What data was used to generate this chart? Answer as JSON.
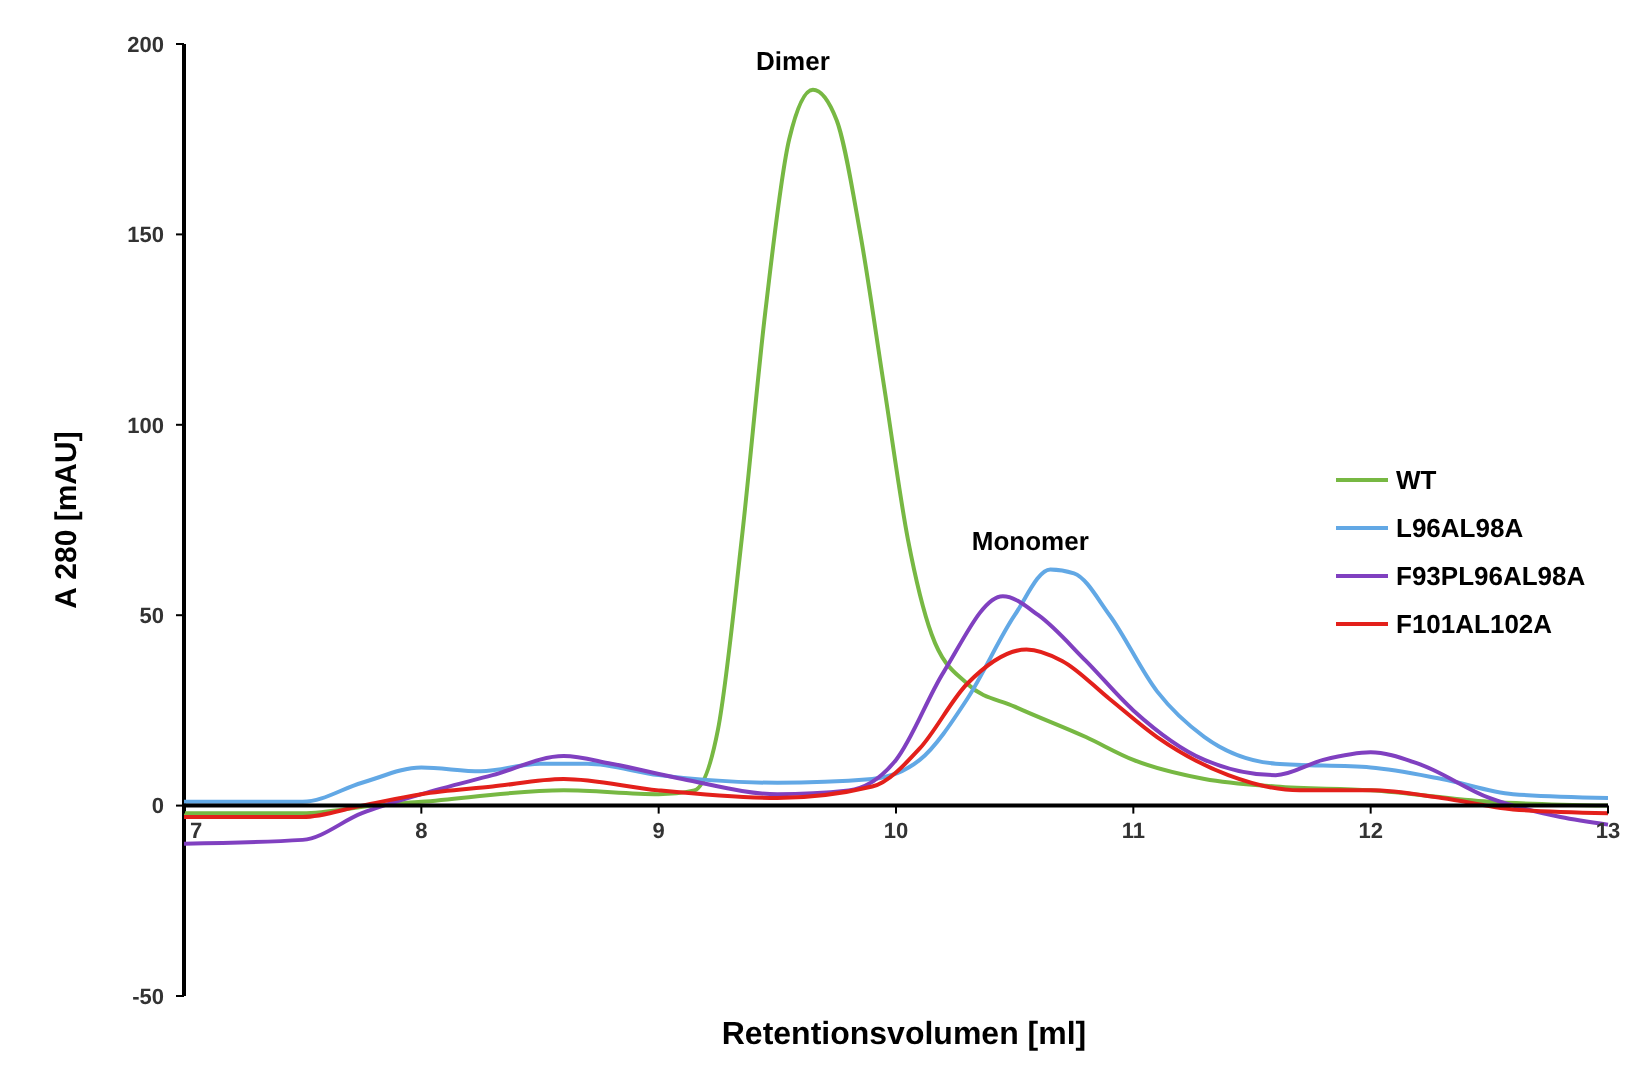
{
  "chart_data": {
    "type": "line",
    "xlabel": "Retentionsvolumen [ml]",
    "ylabel": "A 280 [mAU]",
    "xlim": [
      7,
      13
    ],
    "xticks": [
      7,
      8,
      9,
      10,
      11,
      12,
      13
    ],
    "ylim": [
      -50,
      200
    ],
    "yticks": [
      -50,
      0,
      50,
      100,
      150,
      200
    ],
    "grid": false,
    "legend": "right",
    "line_style": "solid",
    "annotations": [
      {
        "text": "Dimer",
        "x": 9.65,
        "y": 188
      },
      {
        "text": "Monomer",
        "x": 10.65,
        "y": 62
      }
    ],
    "series": [
      {
        "name": "WT",
        "color": "#77b843",
        "x": [
          7,
          7.5,
          7.8,
          8,
          8.6,
          9,
          9.15,
          9.25,
          9.35,
          9.45,
          9.55,
          9.65,
          9.75,
          9.85,
          9.95,
          10.05,
          10.15,
          10.3,
          10.5,
          10.8,
          11,
          11.3,
          11.6,
          12,
          12.5,
          13
        ],
        "values": [
          -2,
          -2,
          0,
          1,
          4,
          3,
          4,
          20,
          70,
          130,
          175,
          188,
          180,
          150,
          110,
          70,
          45,
          32,
          26,
          18,
          12,
          7,
          5,
          4,
          1,
          0
        ]
      },
      {
        "name": "L96AL98A",
        "color": "#62a8e5",
        "x": [
          7,
          7.5,
          7.75,
          8,
          8.25,
          8.5,
          8.7,
          9,
          9.5,
          9.9,
          10.1,
          10.3,
          10.5,
          10.65,
          10.75,
          10.9,
          11.1,
          11.3,
          11.6,
          12,
          12.3,
          12.6,
          13
        ],
        "values": [
          1,
          1,
          6,
          10,
          9,
          11,
          11,
          8,
          6,
          7,
          12,
          28,
          50,
          62,
          61,
          50,
          30,
          18,
          11,
          10,
          7,
          3,
          2
        ]
      },
      {
        "name": "F93PL96AL98A",
        "color": "#8040c0",
        "x": [
          7,
          7.5,
          7.75,
          8,
          8.3,
          8.6,
          8.8,
          9.1,
          9.5,
          9.8,
          10,
          10.2,
          10.45,
          10.6,
          10.8,
          11,
          11.3,
          11.6,
          11.8,
          12,
          12.2,
          12.5,
          12.8,
          13
        ],
        "values": [
          -10,
          -9,
          -2,
          3,
          8,
          13,
          11,
          7,
          3,
          4,
          12,
          35,
          55,
          50,
          38,
          25,
          12,
          8,
          12,
          14,
          11,
          2,
          -3,
          -5
        ]
      },
      {
        "name": "F101AL102A",
        "color": "#e3201b",
        "x": [
          7,
          7.5,
          7.75,
          8,
          8.3,
          8.6,
          9,
          9.5,
          9.9,
          10.1,
          10.3,
          10.55,
          10.7,
          10.9,
          11.1,
          11.4,
          11.7,
          12,
          12.3,
          12.6,
          13
        ],
        "values": [
          -3,
          -3,
          0,
          3,
          5,
          7,
          4,
          2,
          5,
          15,
          32,
          41,
          38,
          28,
          18,
          8,
          4,
          4,
          2,
          -1,
          -2
        ]
      }
    ]
  }
}
